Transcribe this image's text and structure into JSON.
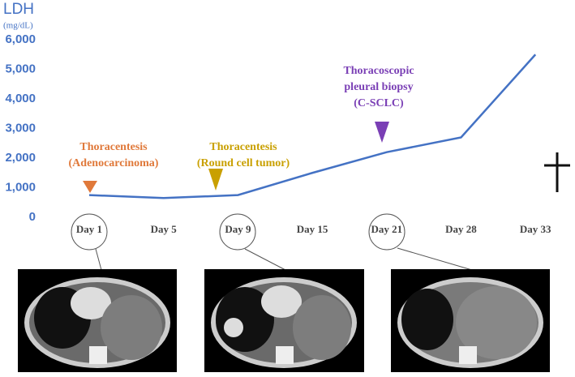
{
  "chart_data": {
    "type": "line",
    "y_axis_title": "LDH",
    "y_axis_unit": "(mg/dL)",
    "categories": [
      "Day 1",
      "Day 5",
      "Day 9",
      "Day 15",
      "Day 21",
      "Day 28",
      "Day 33"
    ],
    "values": [
      750,
      650,
      750,
      1500,
      2200,
      2700,
      5500
    ],
    "color": "#4472c4",
    "ylim": [
      0,
      6000
    ],
    "yticks": [
      0,
      {
        "value": 1000,
        "label": "1,000"
      },
      {
        "value": 2000,
        "label": "2,000"
      },
      {
        "value": 3000,
        "label": "3,000"
      },
      {
        "value": 4000,
        "label": "4,000"
      },
      {
        "value": 5000,
        "label": "5,000"
      },
      {
        "value": 6000,
        "label": "6,000"
      }
    ],
    "grid": false,
    "annotations": [
      {
        "lines": [
          "Thoracentesis",
          "(Adenocarcinoma)"
        ],
        "color": "#e0793a"
      },
      {
        "lines": [
          "Thoracentesis",
          "(Round cell tumor)"
        ],
        "color": "#c9a000"
      },
      {
        "lines": [
          "Thoracoscopic",
          "pleural biopsy",
          "(C-SCLC)"
        ],
        "color": "#7a3fb5"
      }
    ]
  }
}
